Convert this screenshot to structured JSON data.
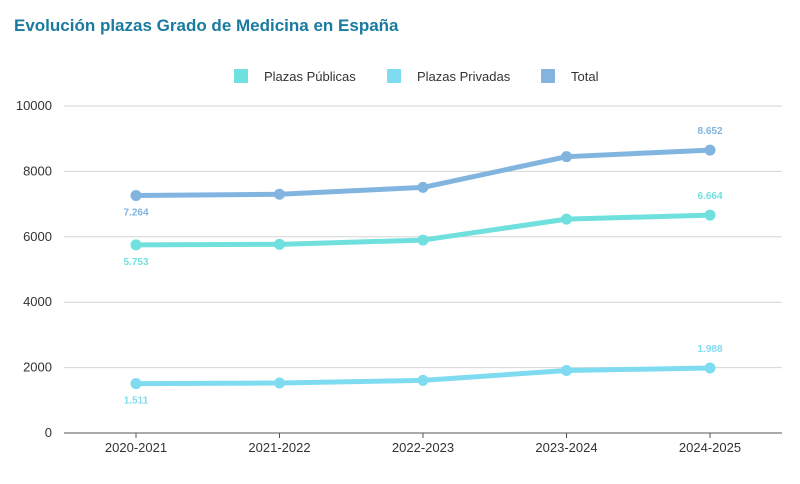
{
  "chart_data": {
    "type": "line",
    "title": "Evolución plazas Grado de Medicina en España",
    "categories": [
      "2020-2021",
      "2021-2022",
      "2022-2023",
      "2023-2024",
      "2024-2025"
    ],
    "ylim": [
      0,
      10000
    ],
    "yticks": [
      "0",
      "2000",
      "4000",
      "6000",
      "8000",
      "10000"
    ],
    "grid": true,
    "legend_position": "top-center",
    "series": [
      {
        "name": "Plazas Públicas",
        "color": "#6fe0dd",
        "values": [
          5753,
          5770,
          5900,
          6540,
          6664
        ],
        "labels": [
          {
            "index": 0,
            "text": "5.753",
            "pos": "below"
          },
          {
            "index": 4,
            "text": "6.664",
            "pos": "above"
          }
        ]
      },
      {
        "name": "Plazas Privadas",
        "color": "#7fdcf0",
        "values": [
          1511,
          1530,
          1610,
          1910,
          1988
        ],
        "labels": [
          {
            "index": 0,
            "text": "1.511",
            "pos": "below"
          },
          {
            "index": 4,
            "text": "1.988",
            "pos": "above"
          }
        ]
      },
      {
        "name": "Total",
        "color": "#82b4e0",
        "values": [
          7264,
          7300,
          7510,
          8450,
          8652
        ],
        "labels": [
          {
            "index": 0,
            "text": "7.264",
            "pos": "below"
          },
          {
            "index": 4,
            "text": "8.652",
            "pos": "above"
          }
        ]
      }
    ]
  }
}
